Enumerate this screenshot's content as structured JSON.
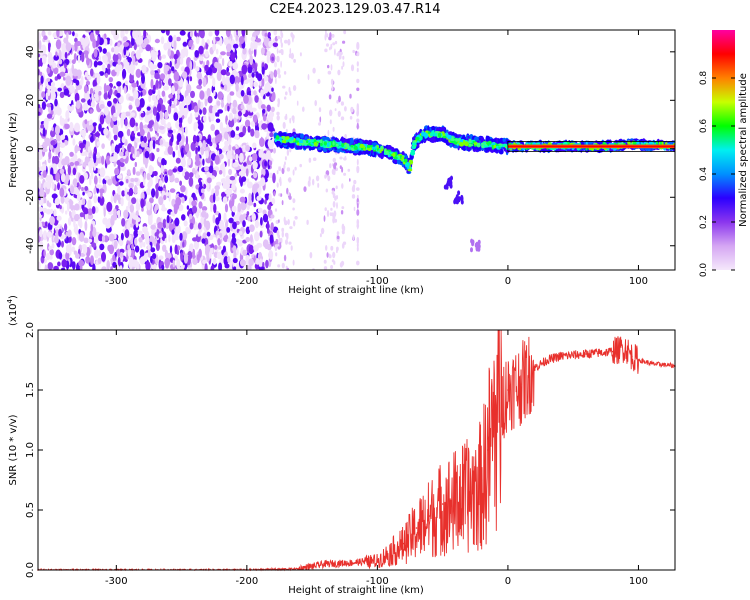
{
  "title": "C2E4.2023.129.03.47.R14",
  "colors": {
    "snr_line": "#e8302c",
    "cmap": [
      "#f5e8fb",
      "#d5a6f3",
      "#8b36ee",
      "#2b00ff",
      "#0090ff",
      "#00f0f0",
      "#00ff00",
      "#c8ff00",
      "#ff8000",
      "#ff0000",
      "#ff00a0"
    ]
  },
  "chart_data": [
    {
      "type": "heatmap",
      "xlabel": "Height of straight line (km)",
      "ylabel": "Frequency (Hz)",
      "xlim": [
        -360,
        128
      ],
      "ylim": [
        -50,
        49
      ],
      "x_ticks": [
        -300,
        -200,
        -100,
        0,
        100
      ],
      "y_ticks": [
        -40,
        -20,
        0,
        20,
        40
      ],
      "colorbar": {
        "label": "Normalized spectral amplitude",
        "range": [
          0,
          1
        ],
        "ticks": [
          0.0,
          0.2,
          0.4,
          0.6,
          0.8
        ]
      },
      "features": {
        "broadband_noise_range_km": [
          -360,
          -178
        ],
        "sparse_streaks_km": [
          -140,
          -122
        ],
        "signal_track": [
          [
            -178,
            4
          ],
          [
            -160,
            3
          ],
          [
            -140,
            2
          ],
          [
            -120,
            1
          ],
          [
            -100,
            0
          ],
          [
            -90,
            -2
          ],
          [
            -80,
            -4
          ],
          [
            -75,
            -8
          ],
          [
            -72,
            2
          ],
          [
            -65,
            6
          ],
          [
            -50,
            6
          ],
          [
            -40,
            3
          ],
          [
            -20,
            2
          ],
          [
            0,
            1
          ],
          [
            40,
            1
          ],
          [
            80,
            1
          ],
          [
            95,
            2
          ],
          [
            128,
            1
          ]
        ],
        "descending_branch": [
          [
            -45,
            -14
          ],
          [
            -38,
            -20
          ],
          [
            -25,
            -40
          ]
        ]
      }
    },
    {
      "type": "line",
      "xlabel": "Height of straight line (km)",
      "ylabel": "SNR (10 * v/v)",
      "y_scale_label": "(x10",
      "y_scale_exp": "4",
      "y_scale_close": ")",
      "xlim": [
        -360,
        128
      ],
      "ylim": [
        0,
        2.0
      ],
      "x_ticks": [
        -300,
        -200,
        -100,
        0,
        100
      ],
      "y_ticks": [
        0.0,
        0.5,
        1.0,
        1.5,
        2.0
      ],
      "series": [
        {
          "x": [
            -360,
            -300,
            -240,
            -200,
            -160,
            -140,
            -120,
            -100,
            -90,
            -80,
            -70,
            -60,
            -50,
            -40,
            -30,
            -20,
            -15,
            -10,
            -5,
            0,
            10,
            20,
            30,
            40,
            60,
            80,
            90,
            95,
            100,
            110,
            128
          ],
          "y": [
            0.0,
            0.0,
            0.0,
            0.0,
            0.01,
            0.05,
            0.06,
            0.08,
            0.15,
            0.22,
            0.35,
            0.45,
            0.55,
            0.6,
            0.65,
            0.75,
            1.0,
            1.3,
            1.4,
            1.5,
            1.55,
            1.68,
            1.75,
            1.78,
            1.8,
            1.82,
            1.85,
            1.78,
            1.75,
            1.72,
            1.7
          ]
        }
      ]
    }
  ]
}
